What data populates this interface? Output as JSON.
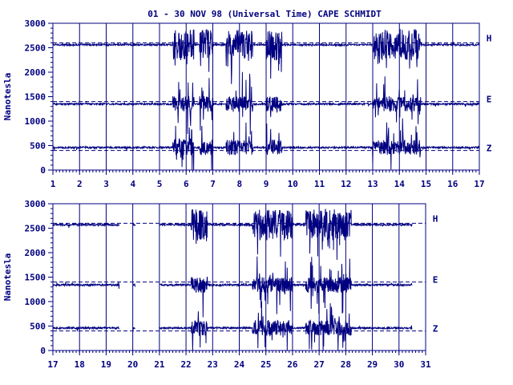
{
  "title": "01 - 30 NOV 98 (Universal Time) CAPE SCHMIDT",
  "color": "#000080",
  "chart_data": [
    {
      "type": "line",
      "ylabel": "Nanotesla",
      "xlim": [
        1,
        17
      ],
      "ylim": [
        0,
        3000
      ],
      "x_ticks": [
        "1",
        "2",
        "3",
        "4",
        "5",
        "6",
        "7",
        "8",
        "9",
        "10",
        "11",
        "12",
        "13",
        "14",
        "15",
        "16",
        "17"
      ],
      "y_ticks": [
        "0",
        "500",
        "1000",
        "1500",
        "2000",
        "2500",
        "3000"
      ],
      "reference_lines": [
        2600,
        1400,
        400
      ],
      "series": [
        {
          "name": "H",
          "baseline": 2560,
          "label_y": 2700
        },
        {
          "name": "E",
          "baseline": 1350,
          "label_y": 1450
        },
        {
          "name": "Z",
          "baseline": 460,
          "label_y": 450
        }
      ],
      "disturbed_days": [
        [
          5.5,
          6.3
        ],
        [
          6.5,
          7.0
        ],
        [
          7.5,
          8.5
        ],
        [
          9.0,
          9.6
        ],
        [
          13.0,
          14.8
        ]
      ]
    },
    {
      "type": "line",
      "ylabel": "Nanotesla",
      "xlim": [
        17,
        31
      ],
      "ylim": [
        0,
        3000
      ],
      "x_ticks": [
        "17",
        "18",
        "19",
        "20",
        "21",
        "22",
        "23",
        "24",
        "25",
        "26",
        "27",
        "28",
        "29",
        "30",
        "31"
      ],
      "y_ticks": [
        "0",
        "500",
        "1000",
        "1500",
        "2000",
        "2500",
        "3000"
      ],
      "reference_lines": [
        2600,
        1400,
        400
      ],
      "series": [
        {
          "name": "H",
          "baseline": 2570,
          "label_y": 2700
        },
        {
          "name": "E",
          "baseline": 1340,
          "label_y": 1450
        },
        {
          "name": "Z",
          "baseline": 460,
          "label_y": 450
        }
      ],
      "gaps": [
        [
          19.5,
          20.0
        ],
        [
          20.1,
          21.0
        ],
        [
          30.5,
          31.0
        ]
      ],
      "disturbed_days": [
        [
          22.2,
          22.8
        ],
        [
          24.5,
          26.0
        ],
        [
          26.5,
          28.2
        ]
      ]
    }
  ]
}
